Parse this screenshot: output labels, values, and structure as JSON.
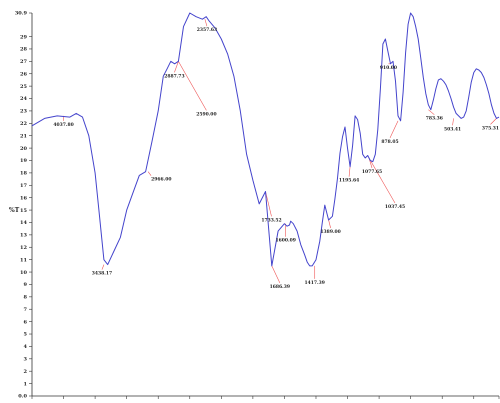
{
  "chart_data": {
    "type": "line",
    "title": "",
    "xlabel": "",
    "ylabel": "%T",
    "xlim": [
      4000,
      300
    ],
    "ylim": [
      0,
      30.9
    ],
    "y_ticks": [
      0.0,
      1,
      2,
      3,
      4,
      5,
      6,
      7,
      8,
      9,
      10,
      11,
      12,
      13,
      14,
      15,
      16,
      17,
      18,
      19,
      20,
      21,
      22,
      23,
      24,
      25,
      26,
      27,
      28,
      29,
      30.9
    ],
    "y_tick_labels": [
      "0.0",
      "1",
      "2",
      "3",
      "4",
      "5",
      "6",
      "7",
      "8",
      "9",
      "10",
      "11",
      "12",
      "13",
      "14",
      "15",
      "16",
      "17",
      "18",
      "19",
      "20",
      "21",
      "22",
      "23",
      "24",
      "25",
      "26",
      "27",
      "28",
      "29",
      "30.9"
    ],
    "x_ticks": [
      4000,
      3750,
      3500,
      3250,
      3000,
      2750,
      2500,
      2250,
      2000,
      1750,
      1500,
      1250,
      1000,
      750,
      500,
      300
    ],
    "x_tick_labels": [
      "",
      "",
      "",
      "",
      "",
      "",
      "",
      "",
      "",
      "",
      "",
      "",
      "",
      "",
      "",
      ""
    ],
    "grid": false,
    "line_color": "#4444cc",
    "peak_marker_color": "#ee5555",
    "series": [
      {
        "x": [
          4000,
          3900,
          3800,
          3700,
          3650,
          3600,
          3550,
          3500,
          3470,
          3450,
          3430,
          3400,
          3350,
          3300,
          3250,
          3200,
          3150,
          3100,
          3050,
          3000,
          2960,
          2930,
          2900,
          2870,
          2840,
          2800,
          2750,
          2700,
          2650,
          2620,
          2600,
          2550,
          2500,
          2450,
          2400,
          2350,
          2300,
          2250,
          2200,
          2150,
          2100,
          2050,
          2000,
          1980,
          1960,
          1950,
          1930,
          1900,
          1870,
          1840,
          1820,
          1800,
          1780,
          1750,
          1720,
          1700,
          1680,
          1650,
          1620,
          1600,
          1580,
          1560,
          1540,
          1520,
          1500,
          1480,
          1460,
          1440,
          1420,
          1400,
          1380,
          1360,
          1340,
          1320,
          1300,
          1280,
          1260,
          1240,
          1220,
          1200,
          1180,
          1160,
          1140,
          1120,
          1100,
          1080,
          1060,
          1040,
          1020,
          1000,
          980,
          960,
          940,
          920,
          900,
          880,
          860,
          840,
          820,
          800,
          780,
          760,
          740,
          720,
          700,
          680,
          660,
          640,
          620,
          600,
          580,
          560,
          540,
          520,
          500,
          480,
          460,
          440,
          420,
          400,
          380,
          360,
          340,
          320,
          300
        ],
        "y": [
          21.8,
          22.4,
          22.6,
          22.5,
          22.8,
          22.5,
          21.0,
          18.0,
          15.0,
          13.0,
          11.0,
          10.6,
          11.7,
          12.8,
          15.0,
          16.4,
          17.8,
          18.1,
          20.5,
          23.0,
          25.8,
          26.4,
          27.0,
          26.8,
          27.0,
          29.8,
          30.9,
          30.6,
          30.4,
          30.6,
          30.3,
          29.7,
          28.8,
          27.6,
          25.8,
          23.0,
          19.5,
          17.4,
          15.5,
          16.5,
          10.5,
          13.3,
          13.9,
          13.7,
          13.8,
          14.1,
          13.9,
          13.3,
          12.2,
          11.4,
          10.8,
          10.5,
          10.5,
          11.0,
          12.5,
          14.0,
          15.4,
          14.2,
          14.5,
          15.9,
          17.5,
          19.6,
          20.9,
          21.7,
          20.0,
          18.5,
          20.2,
          22.6,
          22.3,
          21.2,
          19.5,
          19.2,
          19.4,
          19.0,
          18.9,
          19.5,
          21.5,
          24.8,
          28.4,
          28.8,
          27.8,
          26.8,
          27.0,
          25.4,
          22.6,
          22.2,
          24.5,
          27.7,
          30.0,
          30.9,
          30.6,
          29.8,
          28.8,
          27.3,
          25.7,
          24.4,
          23.5,
          23.1,
          23.9,
          24.8,
          25.5,
          25.6,
          25.4,
          25.1,
          24.6,
          24.0,
          23.3,
          22.8,
          22.6,
          22.4,
          22.5,
          23.0,
          24.1,
          25.3,
          26.1,
          26.4,
          26.3,
          26.1,
          25.7,
          25.1,
          24.4,
          23.5,
          22.8,
          22.4,
          22.5
        ]
      }
    ],
    "peaks": [
      {
        "label": "4037.80",
        "x": 3750,
        "y": 22.6
      },
      {
        "label": "3438.17",
        "x": 3430,
        "y": 10.6
      },
      {
        "label": "2966.00",
        "x": 3080,
        "y": 18.1
      },
      {
        "label": "2887.73",
        "x": 2840,
        "y": 27.0
      },
      {
        "label": "2590.00",
        "x": 2840,
        "y": 27.0
      },
      {
        "label": "2357.63",
        "x": 2630,
        "y": 30.4
      },
      {
        "label": "1733.52",
        "x": 2150,
        "y": 16.5
      },
      {
        "label": "1686.39",
        "x": 2100,
        "y": 10.5
      },
      {
        "label": "1600.09",
        "x": 1990,
        "y": 13.9
      },
      {
        "label": "1417.39",
        "x": 1760,
        "y": 10.5
      },
      {
        "label": "1389.00",
        "x": 1650,
        "y": 14.2
      },
      {
        "label": "1195.64",
        "x": 1480,
        "y": 18.5
      },
      {
        "label": "1077.65",
        "x": 1330,
        "y": 19.2
      },
      {
        "label": "1037.45",
        "x": 1330,
        "y": 19.2
      },
      {
        "label": "910.00",
        "x": 1160,
        "y": 26.8
      },
      {
        "label": "878.05",
        "x": 1100,
        "y": 22.2
      },
      {
        "label": "783.36",
        "x": 860,
        "y": 23.1
      },
      {
        "label": "503.41",
        "x": 660,
        "y": 22.4
      },
      {
        "label": "375.31",
        "x": 320,
        "y": 22.4
      }
    ]
  }
}
